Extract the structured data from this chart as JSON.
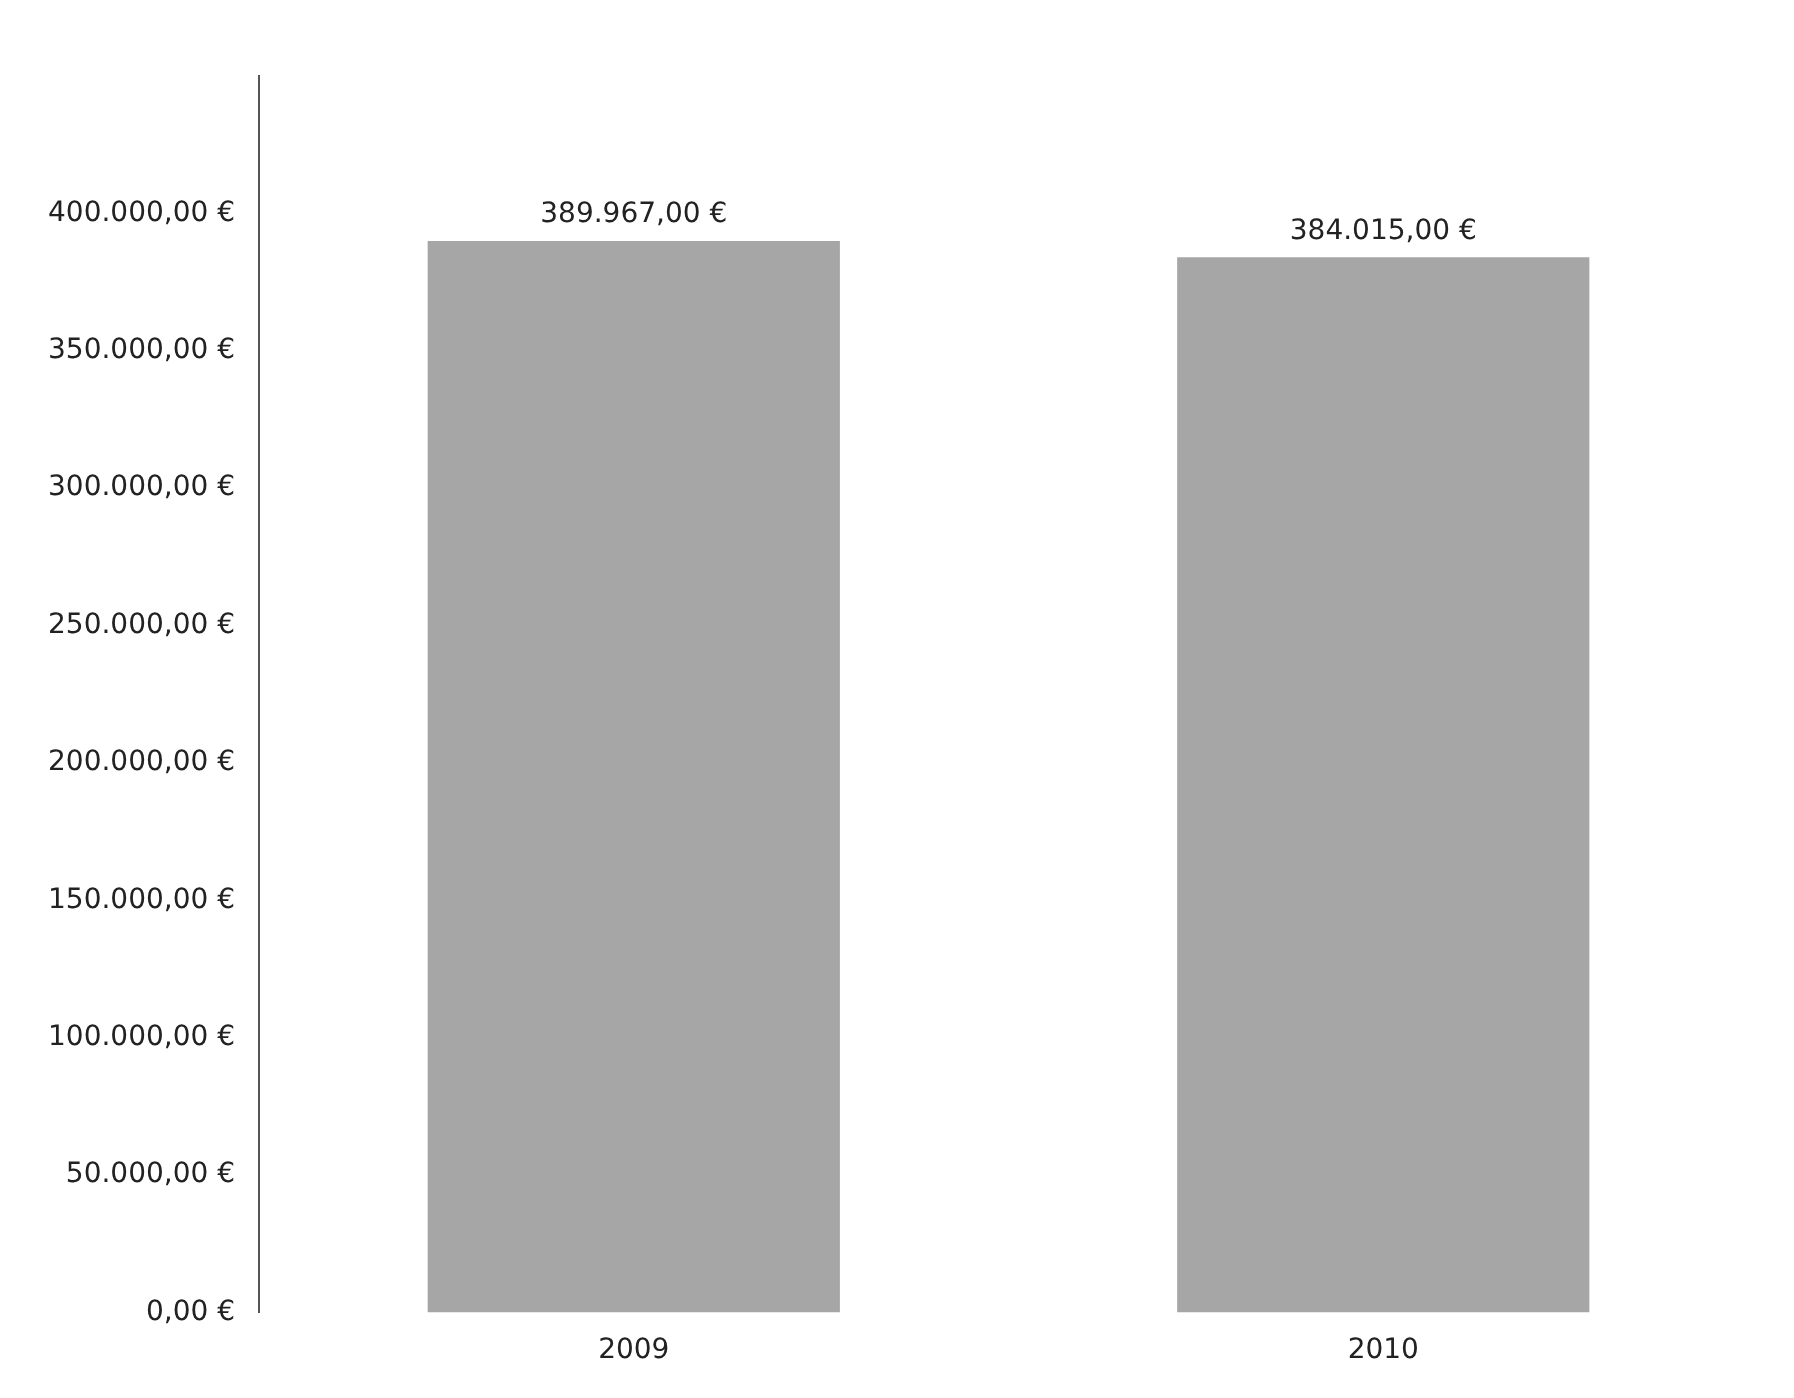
{
  "chart_data": {
    "type": "bar",
    "categories": [
      "2009",
      "2010"
    ],
    "values": [
      389967,
      384015
    ],
    "value_labels": [
      "389.967,00 €",
      "384.015,00 €"
    ],
    "color": "#a6a6a6",
    "ylim": [
      0,
      450000
    ],
    "yticks": [
      {
        "value": 0,
        "label": "0,00 €"
      },
      {
        "value": 50000,
        "label": "50.000,00 €"
      },
      {
        "value": 100000,
        "label": "100.000,00 €"
      },
      {
        "value": 150000,
        "label": "150.000,00 €"
      },
      {
        "value": 200000,
        "label": "200.000,00 €"
      },
      {
        "value": 250000,
        "label": "250.000,00 €"
      },
      {
        "value": 300000,
        "label": "300.000,00 €"
      },
      {
        "value": 350000,
        "label": "350.000,00 €"
      },
      {
        "value": 400000,
        "label": "400.000,00 €"
      }
    ],
    "grid": false,
    "legend": false
  }
}
